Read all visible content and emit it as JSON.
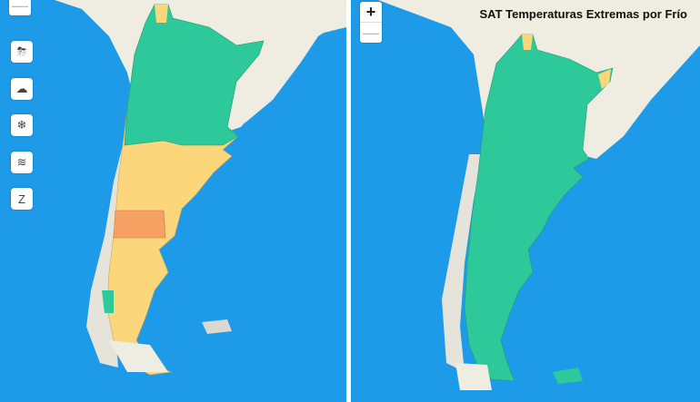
{
  "left_panel": {
    "zoom_out_label": "—",
    "layer_buttons": [
      {
        "icon": "storm-icon",
        "glyph": "⛈"
      },
      {
        "icon": "rain-cloud-icon",
        "glyph": "☁"
      },
      {
        "icon": "snowflake-icon",
        "glyph": "❄"
      },
      {
        "icon": "wind-icon",
        "glyph": "≋"
      },
      {
        "icon": "zonda-icon",
        "glyph": "Z"
      }
    ]
  },
  "right_panel": {
    "title": "SAT Temperaturas Extremas por Frío",
    "zoom_in_label": "+",
    "zoom_out_label": "—"
  },
  "colors": {
    "ocean": "#1e9be8",
    "land": "#efece2",
    "alert_green": "#2ec99a",
    "alert_yellow": "#fbd67a",
    "alert_orange": "#f6a063"
  }
}
